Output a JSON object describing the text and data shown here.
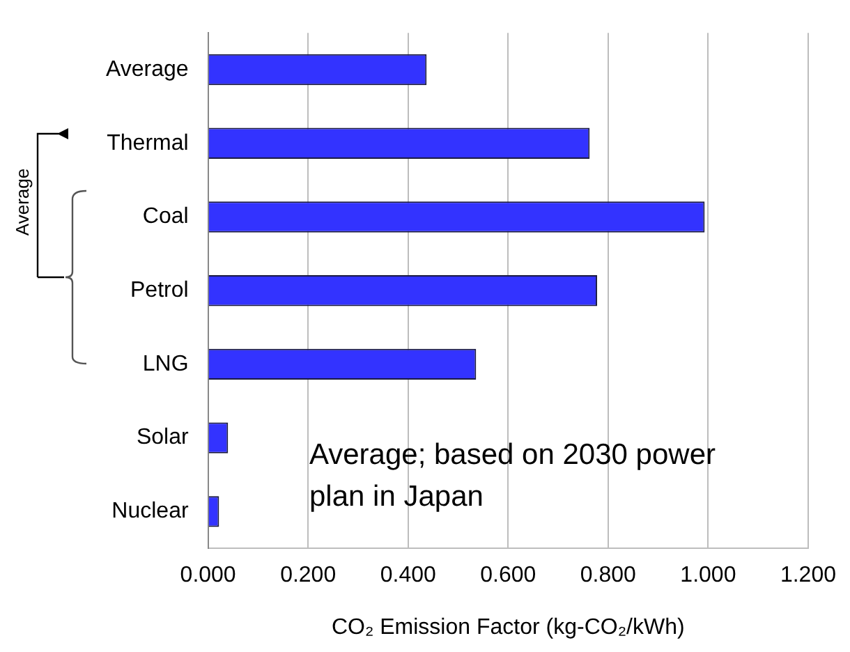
{
  "chart_data": {
    "type": "bar",
    "orientation": "horizontal",
    "categories": [
      "Average",
      "Thermal",
      "Coal",
      "Petrol",
      "LNG",
      "Solar",
      "Nuclear"
    ],
    "values": [
      0.437,
      0.763,
      0.993,
      0.778,
      0.536,
      0.04,
      0.022
    ],
    "color": "#3333ff",
    "xlabel": "CO₂ Emission Factor (kg-CO₂/kWh)",
    "xlim": [
      0,
      1.2
    ],
    "xticks": [
      {
        "value": 0,
        "label": "0.000"
      },
      {
        "value": 0.2,
        "label": "0.200"
      },
      {
        "value": 0.4,
        "label": "0.400"
      },
      {
        "value": 0.6,
        "label": "0.600"
      },
      {
        "value": 0.8,
        "label": "0.800"
      },
      {
        "value": 1.0,
        "label": "1.000"
      },
      {
        "value": 1.2,
        "label": "1.200"
      }
    ],
    "grid": "x",
    "legend": false,
    "annotations": [
      "Average; based on 2030 power plan in Japan",
      "Average"
    ]
  }
}
